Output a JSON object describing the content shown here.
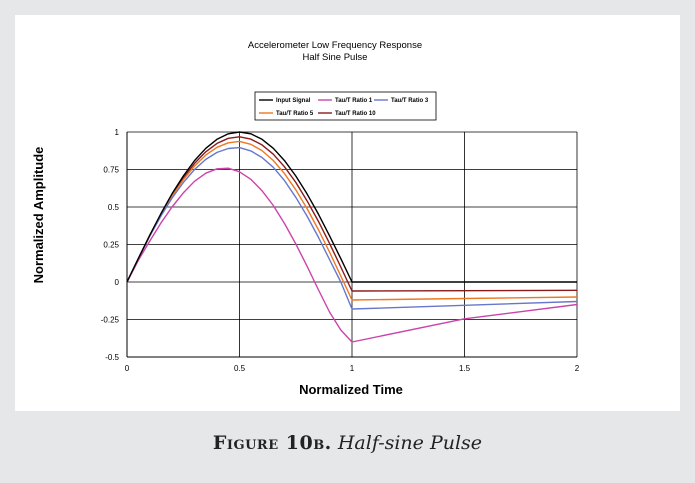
{
  "caption": {
    "label": "Figure 10b.",
    "text": "Half-sine Pulse"
  },
  "chart_data": {
    "type": "line",
    "title": "Accelerometer Low Frequency Response",
    "subtitle": "Half Sine Pulse",
    "xlabel": "Normalized Time",
    "ylabel": "Normalized Amplitude",
    "xlim": [
      0,
      2
    ],
    "ylim": [
      -0.5,
      1
    ],
    "x_ticks": [
      "0",
      "0.5",
      "1",
      "1.5",
      "2"
    ],
    "y_ticks": [
      "1",
      "0.75",
      "0.5",
      "0.25",
      "0",
      "-0.25",
      "-0.5"
    ],
    "grid": true,
    "legend_position": "top-center",
    "series": [
      {
        "name": "Input Signal",
        "color": "#000000",
        "points": [
          [
            0,
            0
          ],
          [
            0.05,
            0.156
          ],
          [
            0.1,
            0.309
          ],
          [
            0.15,
            0.454
          ],
          [
            0.2,
            0.588
          ],
          [
            0.25,
            0.707
          ],
          [
            0.3,
            0.809
          ],
          [
            0.35,
            0.891
          ],
          [
            0.4,
            0.951
          ],
          [
            0.45,
            0.988
          ],
          [
            0.5,
            1.0
          ],
          [
            0.55,
            0.988
          ],
          [
            0.6,
            0.951
          ],
          [
            0.65,
            0.891
          ],
          [
            0.7,
            0.809
          ],
          [
            0.75,
            0.707
          ],
          [
            0.8,
            0.588
          ],
          [
            0.85,
            0.454
          ],
          [
            0.9,
            0.309
          ],
          [
            0.95,
            0.156
          ],
          [
            1.0,
            0
          ],
          [
            1.0,
            0
          ],
          [
            2.0,
            0
          ]
        ]
      },
      {
        "name": "Tau/T Ratio 1",
        "color": "#cc44aa",
        "points": [
          [
            0,
            0
          ],
          [
            0.05,
            0.144
          ],
          [
            0.1,
            0.27
          ],
          [
            0.15,
            0.392
          ],
          [
            0.2,
            0.5
          ],
          [
            0.25,
            0.594
          ],
          [
            0.3,
            0.671
          ],
          [
            0.35,
            0.725
          ],
          [
            0.4,
            0.755
          ],
          [
            0.45,
            0.759
          ],
          [
            0.5,
            0.735
          ],
          [
            0.55,
            0.685
          ],
          [
            0.6,
            0.609
          ],
          [
            0.65,
            0.51
          ],
          [
            0.7,
            0.39
          ],
          [
            0.75,
            0.254
          ],
          [
            0.8,
            0.106
          ],
          [
            0.85,
            -0.05
          ],
          [
            0.9,
            -0.2
          ],
          [
            0.95,
            -0.32
          ],
          [
            1.0,
            -0.4
          ],
          [
            1.5,
            -0.245
          ],
          [
            2.0,
            -0.15
          ]
        ]
      },
      {
        "name": "Tau/T Ratio 3",
        "color": "#6677cc",
        "points": [
          [
            0,
            0
          ],
          [
            0.05,
            0.155
          ],
          [
            0.1,
            0.302
          ],
          [
            0.15,
            0.438
          ],
          [
            0.2,
            0.559
          ],
          [
            0.25,
            0.663
          ],
          [
            0.3,
            0.75
          ],
          [
            0.35,
            0.817
          ],
          [
            0.4,
            0.864
          ],
          [
            0.45,
            0.89
          ],
          [
            0.5,
            0.896
          ],
          [
            0.55,
            0.874
          ],
          [
            0.6,
            0.83
          ],
          [
            0.65,
            0.765
          ],
          [
            0.7,
            0.676
          ],
          [
            0.75,
            0.565
          ],
          [
            0.8,
            0.44
          ],
          [
            0.85,
            0.3
          ],
          [
            0.9,
            0.15
          ],
          [
            0.95,
            0.0
          ],
          [
            1.0,
            -0.18
          ],
          [
            1.5,
            -0.155
          ],
          [
            2.0,
            -0.13
          ]
        ]
      },
      {
        "name": "Tau/T Ratio 5",
        "color": "#ee7722",
        "points": [
          [
            0,
            0
          ],
          [
            0.05,
            0.155
          ],
          [
            0.1,
            0.305
          ],
          [
            0.15,
            0.445
          ],
          [
            0.2,
            0.572
          ],
          [
            0.25,
            0.681
          ],
          [
            0.3,
            0.773
          ],
          [
            0.35,
            0.846
          ],
          [
            0.4,
            0.898
          ],
          [
            0.45,
            0.928
          ],
          [
            0.5,
            0.937
          ],
          [
            0.55,
            0.918
          ],
          [
            0.6,
            0.876
          ],
          [
            0.65,
            0.81
          ],
          [
            0.7,
            0.723
          ],
          [
            0.75,
            0.615
          ],
          [
            0.8,
            0.49
          ],
          [
            0.85,
            0.35
          ],
          [
            0.9,
            0.2
          ],
          [
            0.95,
            0.04
          ],
          [
            1.0,
            -0.12
          ],
          [
            1.5,
            -0.11
          ],
          [
            2.0,
            -0.1
          ]
        ]
      },
      {
        "name": "Tau/T Ratio 10",
        "color": "#8b1a1a",
        "points": [
          [
            0,
            0
          ],
          [
            0.05,
            0.156
          ],
          [
            0.1,
            0.307
          ],
          [
            0.15,
            0.45
          ],
          [
            0.2,
            0.58
          ],
          [
            0.25,
            0.695
          ],
          [
            0.3,
            0.791
          ],
          [
            0.35,
            0.868
          ],
          [
            0.4,
            0.924
          ],
          [
            0.45,
            0.958
          ],
          [
            0.5,
            0.968
          ],
          [
            0.55,
            0.953
          ],
          [
            0.6,
            0.914
          ],
          [
            0.65,
            0.852
          ],
          [
            0.7,
            0.768
          ],
          [
            0.75,
            0.664
          ],
          [
            0.8,
            0.542
          ],
          [
            0.85,
            0.406
          ],
          [
            0.9,
            0.258
          ],
          [
            0.95,
            0.1
          ],
          [
            1.0,
            -0.06
          ],
          [
            1.5,
            -0.058
          ],
          [
            2.0,
            -0.055
          ]
        ]
      }
    ]
  }
}
